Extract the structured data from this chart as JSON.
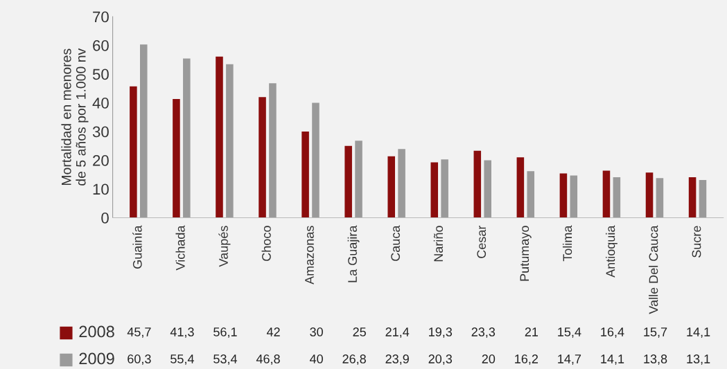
{
  "chart_data": {
    "type": "bar",
    "ylabel": "Mortalidad en menores\nde 5 años por 1.000 nv",
    "categories": [
      "Guainía",
      "Vichada",
      "Vaupés",
      "Choco",
      "Amazonas",
      "La Guajira",
      "Cauca",
      "Nariño",
      "Cesar",
      "Putumayo",
      "Tolima",
      "Antioquia",
      "Valle Del Cauca",
      "Sucre"
    ],
    "series": [
      {
        "name": "2008",
        "color": "#8b0d0d",
        "values": [
          45.7,
          41.3,
          56.1,
          42,
          30,
          25,
          21.4,
          19.3,
          23.3,
          21,
          15.4,
          16.4,
          15.7,
          14.1
        ],
        "value_labels": [
          "45,7",
          "41,3",
          "56,1",
          "42",
          "30",
          "25",
          "21,4",
          "19,3",
          "23,3",
          "21",
          "15,4",
          "16,4",
          "15,7",
          "14,1"
        ]
      },
      {
        "name": "2009",
        "color": "#9a9a9a",
        "values": [
          60.3,
          55.4,
          53.4,
          46.8,
          40,
          26.8,
          23.9,
          20.3,
          20,
          16.2,
          14.7,
          14.1,
          13.8,
          13.1
        ],
        "value_labels": [
          "60,3",
          "55,4",
          "53,4",
          "46,8",
          "40",
          "26,8",
          "23,9",
          "20,3",
          "20",
          "16,2",
          "14,7",
          "14,1",
          "13,8",
          "13,1"
        ]
      }
    ],
    "ylim": [
      0,
      70
    ],
    "yticks": [
      0,
      10,
      20,
      30,
      40,
      50,
      60,
      70
    ],
    "grid": false,
    "legend": "bottom left"
  }
}
